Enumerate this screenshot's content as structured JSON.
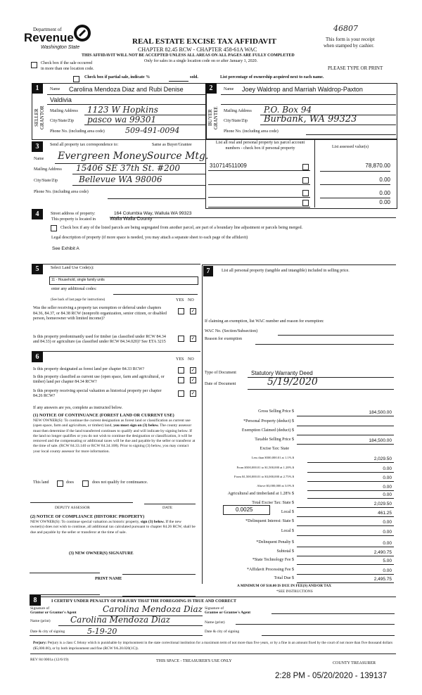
{
  "header": {
    "logo": {
      "line1": "Department of",
      "line2": "Revenue",
      "line3": "Washington State"
    },
    "title": "REAL ESTATE EXCISE TAX AFFIDAVIT",
    "chapter": "CHAPTER 82.45 RCW - CHAPTER 458-61A WAC",
    "warning": "THIS AFFIDAVIT WILL NOT BE ACCEPTED UNLESS ALL AREAS ON ALL PAGES ARE FULLY COMPLETED",
    "only_for": "Only for sales in a single location code on or after January 1, 2020.",
    "handwritten_number": "46807",
    "receipt_line1": "This form is your receipt",
    "receipt_line2": "when stamped by cashier.",
    "multi_location_line1": "Check box if the sale occurred",
    "multi_location_line2": "in more than one location code.",
    "please_type": "PLEASE TYPE OR PRINT",
    "partial_sale": "Check box if partial sale, indicate %",
    "sold": "sold.",
    "ownership_note": "List percentage of ownership acquired next to each name."
  },
  "section1": {
    "num": "1",
    "side_label": "SELLER GRANTOR",
    "name_label": "Name",
    "name": "Carolina Mendoza Diaz and Rubi Denise",
    "name_cont": "Valdivia",
    "mailing_label": "Mailing Address",
    "mailing": "1123 W Hopkins",
    "city_label": "City/State/Zip",
    "city": "pasco wa 99301",
    "phone_label": "Phone No. (including area code)",
    "phone": "509-491-0094"
  },
  "section2": {
    "num": "2",
    "side_label": "BUYER GRANTEE",
    "name_label": "Name",
    "name": "Joey Waldrop and Marriah Waldrop-Paxton",
    "mailing_label": "Mailing Address",
    "mailing": "P.O. Box 94",
    "city_label": "City/State/Zip",
    "city": "Burbank, WA 99323",
    "phone_label": "Phone No. (including area code)"
  },
  "section3": {
    "num": "3",
    "send_label": "Send all property tax correspondence to:",
    "same_as": "Same as Buyer/Grantee",
    "name_label": "Name",
    "name": "Evergreen MoneySource Mtg.",
    "mailing_label": "Mailing Address",
    "mailing": "15406 SE 37th St. #200",
    "city_label": "City/State/Zip",
    "city": "Bellevue WA 98006",
    "phone_label": "Phone No. (including area code)",
    "parcel_header": "List all real and personal property tax parcel account numbers - check box if personal property",
    "assessed_header": "List assessed value(s)",
    "parcels": [
      {
        "account": "310714511009",
        "value": "78,870.00"
      },
      {
        "account": "",
        "value": "0.00"
      },
      {
        "account": "",
        "value": "0.00"
      },
      {
        "account": "",
        "value": "0.00"
      }
    ]
  },
  "section4": {
    "num": "4",
    "street_label": "Street address of property:",
    "street": "164 Columbia Way, Wallula WA  99323",
    "located_label": "This property is located in",
    "county": "Walla Walla County",
    "segregated": "Check box if any of the listed parcels are being segregated from another parcel, are part of a boundary line adjustment or parcels being merged.",
    "legal_label": "Legal description of property (if more space is needed, you may attach a separate sheet to each page of the affidavit)",
    "legal": "See Exhibit A"
  },
  "section5": {
    "num": "5",
    "select_label": "Select Land Use Code(s):",
    "land_use": "11 - Household, single family units",
    "additional": "enter any additional codes:",
    "see_back": "(See back of last page for instructions)",
    "yes": "YES",
    "no": "NO",
    "q1": "Was the seller receiving a property tax exemption or deferral under chapters 84.36, 84.37, or 84.38 RCW (nonprofit organization, senior citizen, or disabled person, homeowner with limited income)?",
    "q2": "Is this property predominantly used for timber (as classified under RCW 84.34 and 84.33) or agriculture (as classified under RCW 84.34.020)? See ETA 3215"
  },
  "section6": {
    "num": "6",
    "yes": "YES",
    "no": "NO",
    "q1": "Is this property designated as forest land per chapter 84.33 RCW?",
    "q2": "Is this property classified as current use (open space, farm and agricultural, or timber) land per chapter 84.34 RCW?",
    "q3": "Is this property receiving special valuation as historical property per chapter 84.26 RCW?",
    "if_yes": "If any answers are yes, complete as instructed below.",
    "notice1_title": "(1) NOTICE OF CONTINUANCE (FOREST LAND OR CURRENT USE)",
    "notice1_a": "NEW OWNER(S): To continue the current designation as forest land or classification as current use (open space, farm and agriculture, or timber) land,",
    "notice1_bold": "you must sign on (3) below.",
    "notice1_b": "The county assessor must then determine if the land transferred continues to qualify and will indicate by signing below. If the land no longer qualifies or you do not wish to continue the designation or classification, it will be removed and the compensating or additional taxes will be due and payable by the seller or transferor at the time of sale. (RCW 84.33.140 or RCW 84.34.108). Prior to signing (3) below, you may contact your local county assessor for more information.",
    "this_land": "This land",
    "does": "does",
    "does_not": "does not qualify for continuance.",
    "deputy": "DEPUTY ASSESSOR",
    "date": "DATE",
    "notice2_title": "(2) NOTICE OF COMPLIANCE (HISTORIC PROPERTY)",
    "notice2_a": "NEW OWNER(S): To continue special valuation as historic property,",
    "notice2_bold": "sign (3) below.",
    "notice2_b": "If the new owner(s) does not wish to continue, all additional tax calculated pursuant to chapter 84.26 RCW, shall be due and payable by the seller or transferor at the time of sale.",
    "signature3": "(3) NEW OWNER(S) SIGNATURE",
    "print_name": "PRINT NAME"
  },
  "section7": {
    "num": "7",
    "personal_label": "List all personal property (tangible and intangible) included in selling price.",
    "exemption_label": "If claiming an exemption, list WAC number and reason for exemption:",
    "wac_label": "WAC No. (Section/Subsection)",
    "reason_label": "Reason for exemption",
    "doc_type_label": "Type of Document",
    "doc_type": "Statutory Warranty Deed",
    "doc_date_label": "Date of Document",
    "doc_date": "5/19/2020",
    "local_rate": "0.0025",
    "tax_rows": [
      {
        "label": "Gross Selling Price $",
        "value": "184,500.00"
      },
      {
        "label": "*Personal Property (deduct) $",
        "value": ""
      },
      {
        "label": "Exemption Claimed (deduct) $",
        "value": ""
      },
      {
        "label": "Taxable Selling Price $",
        "value": "184,500.00"
      },
      {
        "label": "Excise Tax: State",
        "value": ""
      },
      {
        "label": "Less than $500,000.01 at 1.1% $",
        "value": "2,029.50"
      },
      {
        "label": "From $500,000.01 to $1,500,000 at 1.28% $",
        "value": "0.00"
      },
      {
        "label": "From $1,500,000.01 to $3,000,000 at 2.75% $",
        "value": "0.00"
      },
      {
        "label": "Above $3,000,000 at 3.0% $",
        "value": "0.00"
      },
      {
        "label": "Agricultural and timberland at 1.28% $",
        "value": "0.00"
      },
      {
        "label": "Total Excise Tax: State $",
        "value": "2,029.50"
      },
      {
        "label": "Local $",
        "value": "461.25"
      },
      {
        "label": "*Delinquent Interest: State $",
        "value": "0.00"
      },
      {
        "label": "Local $",
        "value": "0.00"
      },
      {
        "label": "*Delinquent Penalty $",
        "value": "0.00"
      },
      {
        "label": "Subtotal $",
        "value": "2,490.75"
      },
      {
        "label": "*State Technology Fee $",
        "value": "5.00"
      },
      {
        "label": "*Affidavit Processing Fee $",
        "value": "0.00"
      },
      {
        "label": "Total Due $",
        "value": "2,495.75"
      }
    ],
    "minimum": "A MINIMUM OF $10.00 IS DUE IN FEE(S) AND/OR TAX",
    "see_instructions": "*SEE INSTRUCTIONS"
  },
  "section8": {
    "num": "8",
    "certify": "I CERTIFY UNDER PENALTY OF PERJURY THAT THE FOREGOING IS TRUE AND CORRECT",
    "grantor_sig_label1": "Signature of",
    "grantor_sig_label2": "Grantor or Grantor's Agent",
    "grantor_signature": "Carolina Mendoza Diaz",
    "grantor_name_label": "Name (print)",
    "grantor_name": "Carolina Mendoza Diaz",
    "grantor_date_label": "Date & city of signing",
    "grantor_date": "5-19-20",
    "grantee_sig_label1": "Signature of",
    "grantee_sig_label2": "Grantee or Grantee's Agent",
    "grantee_name_label": "Name (print)",
    "grantee_date_label": "Date & city of signing",
    "perjury_bold": "Perjury:",
    "perjury": "Perjury is a class C felony which is punishable by imprisonment in the state correctional institution for a maximum term of not more than five years, or by a fine in an amount fixed by the court of not more than five thousand dollars ($5,000.00), or by both imprisonment and fine (RCW 9A.20.020(1C))."
  },
  "footer": {
    "form_id": "REV 84 0001a (12/6/19)",
    "treasurer_space": "THIS SPACE - TREASURER'S USE ONLY",
    "county_treasurer": "COUNTY TREASURER",
    "stamp": "2:28 PM - 05/20/2020 - 139137"
  }
}
